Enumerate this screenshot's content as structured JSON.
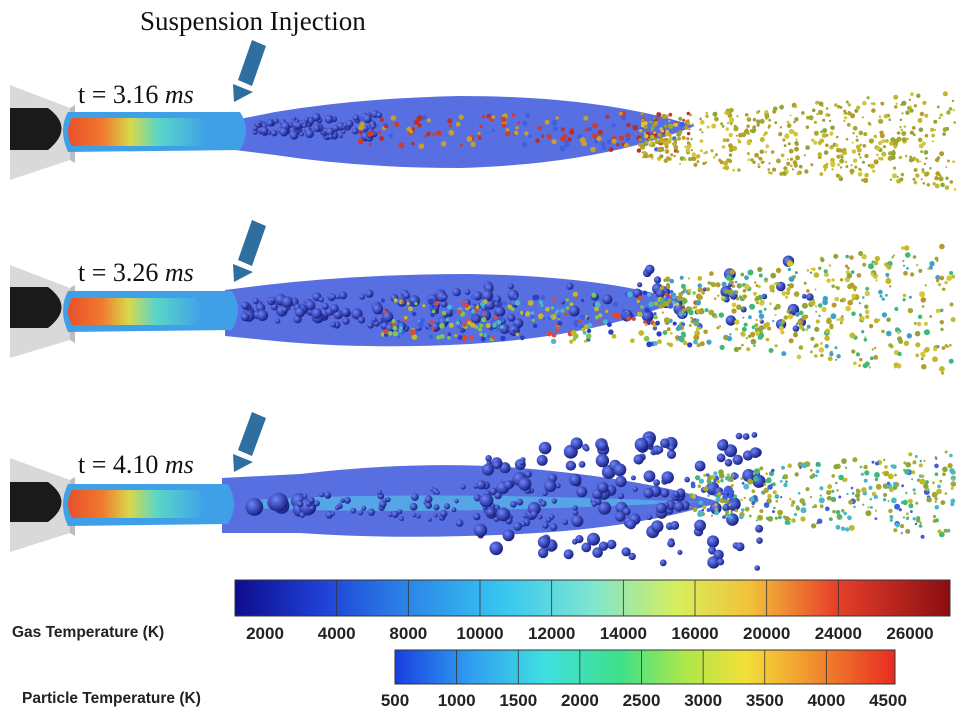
{
  "title": "Suspension Injection",
  "snapshots": [
    {
      "t_prefix": "t = ",
      "t_value": "3.16",
      "t_unit": "ms"
    },
    {
      "t_prefix": "t = ",
      "t_value": "3.26",
      "t_unit": "ms"
    },
    {
      "t_prefix": "t = ",
      "t_value": "4.10",
      "t_unit": "ms"
    }
  ],
  "gas_colorbar": {
    "label": "Gas Temperature (K)",
    "ticks": [
      "2000",
      "4000",
      "8000",
      "10000",
      "12000",
      "14000",
      "16000",
      "20000",
      "24000",
      "26000"
    ]
  },
  "particle_colorbar": {
    "label": "Particle Temperature (K)",
    "ticks": [
      "500",
      "1000",
      "1500",
      "2000",
      "2500",
      "3000",
      "3500",
      "4000",
      "4500"
    ]
  },
  "colors": {
    "torch": "#1a1a1a",
    "nozzle": "#d9d9d9",
    "plume": "#4a63e0",
    "injector": "#2f6f9f"
  }
}
